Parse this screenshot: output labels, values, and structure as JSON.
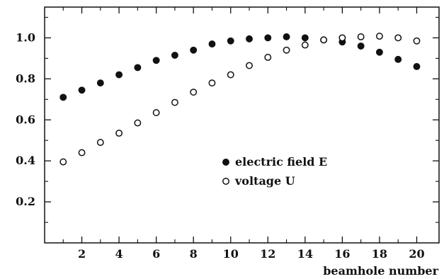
{
  "chart_data": {
    "type": "scatter",
    "xlabel": "beamhole number",
    "ylabel": "",
    "xlim": [
      0,
      21.2
    ],
    "ylim": [
      0,
      1.15
    ],
    "x_ticks": [
      2,
      4,
      6,
      8,
      10,
      12,
      14,
      16,
      18,
      20
    ],
    "x_tick_labels": [
      "2",
      "4",
      "6",
      "8",
      "10",
      "12",
      "14",
      "16",
      "18",
      "20"
    ],
    "x_minor_ticks": [
      1,
      3,
      5,
      7,
      9,
      11,
      13,
      15,
      17,
      19
    ],
    "y_ticks": [
      0.2,
      0.4,
      0.6,
      0.8,
      1.0
    ],
    "y_tick_labels": [
      "0.2",
      "0.4",
      "0.6",
      "0.8",
      "1.0"
    ],
    "y_minor_ticks": [
      0.1,
      0.3,
      0.5,
      0.7,
      0.9,
      1.1
    ],
    "grid": false,
    "legend_position": "center-right",
    "series": [
      {
        "name": "electric field E",
        "marker": "filled-circle",
        "color": "#111111",
        "x": [
          1,
          2,
          3,
          4,
          5,
          6,
          7,
          8,
          9,
          10,
          11,
          12,
          13,
          14,
          15,
          16,
          17,
          18,
          19,
          20
        ],
        "y": [
          0.71,
          0.745,
          0.78,
          0.82,
          0.855,
          0.89,
          0.915,
          0.94,
          0.97,
          0.985,
          0.995,
          1.0,
          1.005,
          1.0,
          0.99,
          0.98,
          0.96,
          0.93,
          0.895,
          0.86
        ]
      },
      {
        "name": "voltage U",
        "marker": "open-circle",
        "color": "#111111",
        "x": [
          1,
          2,
          3,
          4,
          5,
          6,
          7,
          8,
          9,
          10,
          11,
          12,
          13,
          14,
          15,
          16,
          17,
          18,
          19,
          20
        ],
        "y": [
          0.395,
          0.44,
          0.49,
          0.535,
          0.585,
          0.635,
          0.685,
          0.735,
          0.78,
          0.82,
          0.865,
          0.905,
          0.94,
          0.965,
          0.99,
          1.0,
          1.005,
          1.008,
          1.0,
          0.985
        ]
      }
    ]
  }
}
